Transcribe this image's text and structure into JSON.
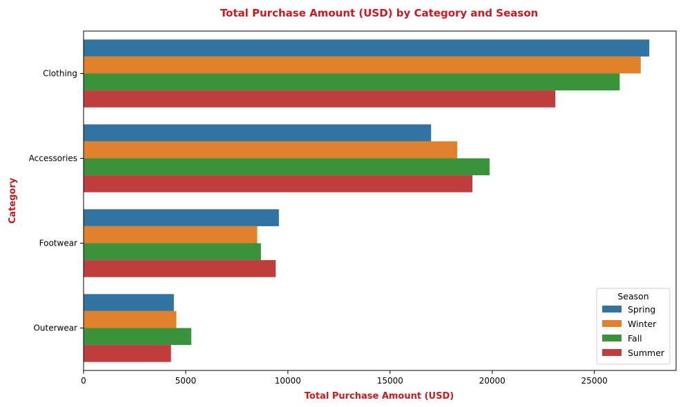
{
  "chart_data": {
    "type": "bar",
    "orientation": "horizontal",
    "title": "Total Purchase Amount (USD) by Category and Season",
    "xlabel": "Total Purchase Amount (USD)",
    "ylabel": "Category",
    "categories": [
      "Clothing",
      "Accessories",
      "Footwear",
      "Outerwear"
    ],
    "series": [
      {
        "name": "Spring",
        "color": "#3274a1",
        "values": [
          27690,
          17010,
          9560,
          4420
        ]
      },
      {
        "name": "Winter",
        "color": "#e1812c",
        "values": [
          27270,
          18290,
          8500,
          4540
        ]
      },
      {
        "name": "Fall",
        "color": "#3a923a",
        "values": [
          26240,
          19870,
          8680,
          5270
        ]
      },
      {
        "name": "Summer",
        "color": "#c03d3e",
        "values": [
          23090,
          19030,
          9400,
          4280
        ]
      }
    ],
    "xlim": [
      0,
      29000
    ],
    "xticks": [
      0,
      5000,
      10000,
      15000,
      20000,
      25000
    ],
    "grid": false,
    "legend": {
      "title": "Season",
      "position": "lower-right"
    },
    "accent_color": "#d0181c"
  }
}
